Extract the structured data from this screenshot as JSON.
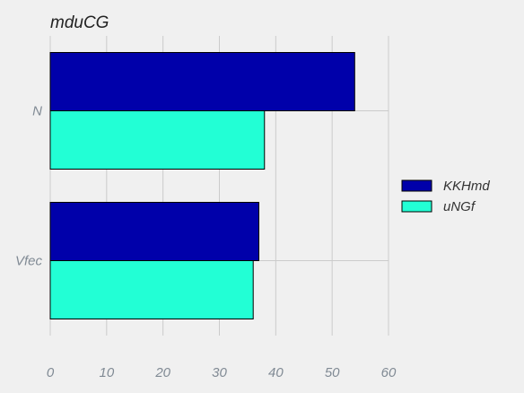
{
  "chart_data": {
    "type": "bar",
    "orientation": "horizontal",
    "title": "mduCG",
    "categories": [
      "N",
      "Vfec"
    ],
    "series": [
      {
        "name": "KKHmd",
        "values": [
          54,
          37
        ],
        "color": "#0000aa"
      },
      {
        "name": "uNGf",
        "values": [
          38,
          36
        ],
        "color": "#22ffd5"
      }
    ],
    "xlim": [
      0,
      60
    ],
    "xticks": [
      "0",
      "10",
      "20",
      "30",
      "40",
      "50",
      "60"
    ],
    "xlabel": "",
    "ylabel": "",
    "grid": true,
    "legend": "right"
  }
}
